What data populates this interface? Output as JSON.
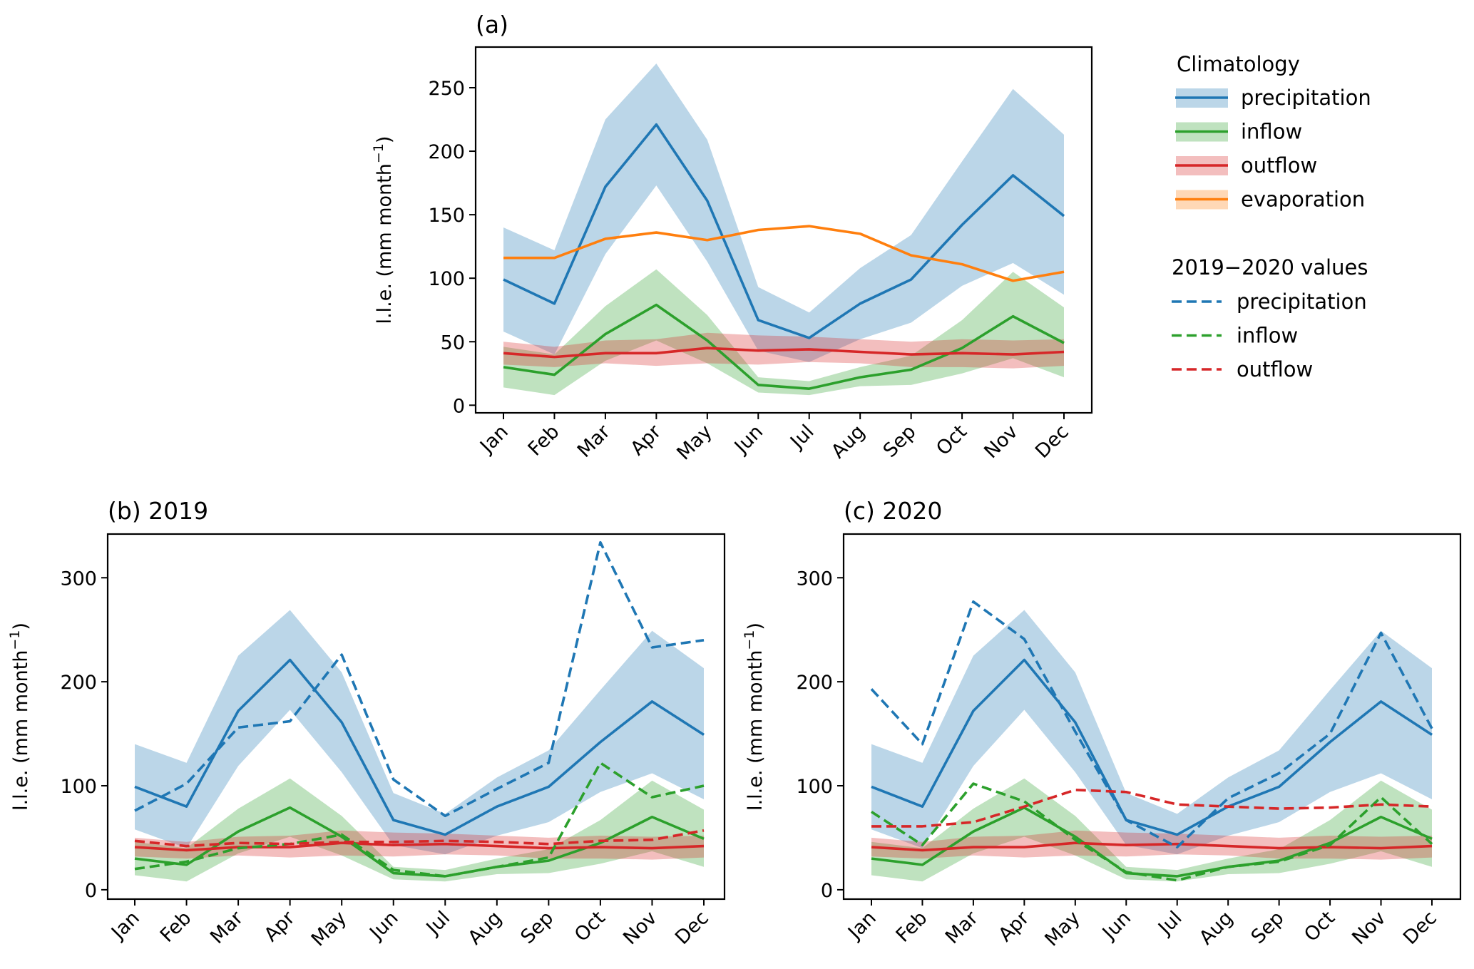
{
  "chart_data": {
    "type": "line",
    "months": [
      "Jan",
      "Feb",
      "Mar",
      "Apr",
      "May",
      "Jun",
      "Jul",
      "Aug",
      "Sep",
      "Oct",
      "Nov",
      "Dec"
    ],
    "ylabel": "l.l.e. (mm month",
    "ylabel_sup": "−1",
    "ylabel_close": ")",
    "colors": {
      "precipitation": "#1f77b4",
      "inflow": "#2ca02c",
      "outflow": "#d62728",
      "evaporation": "#ff7f0e"
    },
    "climatology": {
      "precipitation": {
        "mean": [
          99,
          80,
          172,
          221,
          161,
          67,
          53,
          80,
          99,
          142,
          181,
          149
        ],
        "upper": [
          140,
          122,
          225,
          269,
          209,
          93,
          73,
          108,
          134,
          192,
          249,
          213
        ],
        "lower": [
          58,
          40,
          119,
          173,
          113,
          43,
          34,
          52,
          65,
          94,
          112,
          87
        ]
      },
      "inflow": {
        "mean": [
          30,
          24,
          56,
          79,
          51,
          16,
          13,
          22,
          28,
          45,
          70,
          49
        ],
        "upper": [
          46,
          40,
          78,
          107,
          71,
          22,
          19,
          30,
          39,
          67,
          105,
          77
        ],
        "lower": [
          14,
          8,
          35,
          51,
          33,
          10,
          8,
          15,
          16,
          25,
          37,
          22
        ]
      },
      "outflow": {
        "mean": [
          41,
          38,
          41,
          41,
          45,
          43,
          44,
          42,
          40,
          41,
          40,
          42
        ],
        "upper": [
          50,
          46,
          51,
          52,
          57,
          55,
          54,
          52,
          50,
          52,
          51,
          52
        ],
        "lower": [
          32,
          30,
          33,
          31,
          33,
          32,
          34,
          33,
          30,
          30,
          29,
          31
        ]
      },
      "evaporation": {
        "mean": [
          116,
          116,
          131,
          136,
          130,
          138,
          141,
          135,
          118,
          111,
          98,
          105
        ]
      }
    },
    "observed": {
      "2019": {
        "precipitation": [
          76,
          102,
          156,
          162,
          226,
          106,
          71,
          97,
          122,
          334,
          233,
          240
        ],
        "inflow": [
          20,
          27,
          40,
          44,
          53,
          19,
          13,
          22,
          31,
          122,
          89,
          100
        ],
        "outflow": [
          47,
          42,
          45,
          44,
          46,
          46,
          47,
          46,
          44,
          47,
          48,
          57
        ]
      },
      "2020": {
        "precipitation": [
          193,
          140,
          277,
          241,
          152,
          67,
          41,
          88,
          112,
          150,
          247,
          155
        ],
        "inflow": [
          75,
          43,
          102,
          85,
          48,
          17,
          9,
          22,
          27,
          43,
          89,
          44
        ],
        "outflow": [
          61,
          61,
          65,
          80,
          96,
          94,
          82,
          80,
          78,
          79,
          82,
          80
        ]
      }
    },
    "panels": [
      {
        "id": "a",
        "title": "(a)",
        "ylim": [
          -6,
          282
        ],
        "yticks": [
          0,
          50,
          100,
          150,
          200,
          250
        ],
        "series": [
          "precipitation",
          "inflow",
          "outflow",
          "evaporation"
        ],
        "observed_year": null
      },
      {
        "id": "b",
        "title": "(b) 2019",
        "ylim": [
          -9,
          342
        ],
        "yticks": [
          0,
          100,
          200,
          300
        ],
        "series": [
          "precipitation",
          "inflow",
          "outflow"
        ],
        "observed_year": "2019"
      },
      {
        "id": "c",
        "title": "(c) 2020",
        "ylim": [
          -9,
          342
        ],
        "yticks": [
          0,
          100,
          200,
          300
        ],
        "series": [
          "precipitation",
          "inflow",
          "outflow"
        ],
        "observed_year": "2020"
      }
    ],
    "legend": {
      "placement": "right of panel (a)",
      "climatology_title": "Climatology",
      "climatology_entries": [
        "precipitation",
        "inflow",
        "outflow",
        "evaporation"
      ],
      "observed_title": "2019−2020 values",
      "observed_entries": [
        "precipitation",
        "inflow",
        "outflow"
      ]
    }
  }
}
